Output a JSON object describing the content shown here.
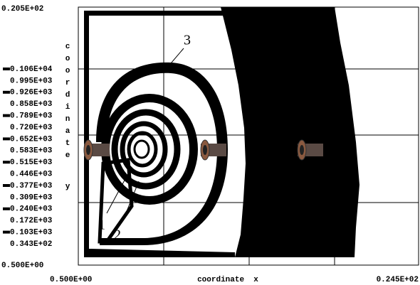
{
  "axes": {
    "y_top": "0.205E+02",
    "y_bottom": "0.500E+00",
    "x_left": "0.500E+00",
    "x_right": "0.245E+02",
    "x_title": "coordinate  x",
    "y_title": [
      "c",
      "o",
      "o",
      "r",
      "d",
      "i",
      "n",
      "a",
      "t",
      "e",
      "y"
    ]
  },
  "levels": [
    "0.106E+04",
    "0.995E+03",
    "0.926E+03",
    "0.858E+03",
    "0.789E+03",
    "0.720E+03",
    "0.652E+03",
    "0.583E+03",
    "0.515E+03",
    "0.446E+03",
    "0.377E+03",
    "0.309E+03",
    "0.240E+03",
    "0.172E+03",
    "0.103E+03",
    "0.343E+02"
  ],
  "annotations": [
    "1",
    "2",
    "3"
  ]
}
